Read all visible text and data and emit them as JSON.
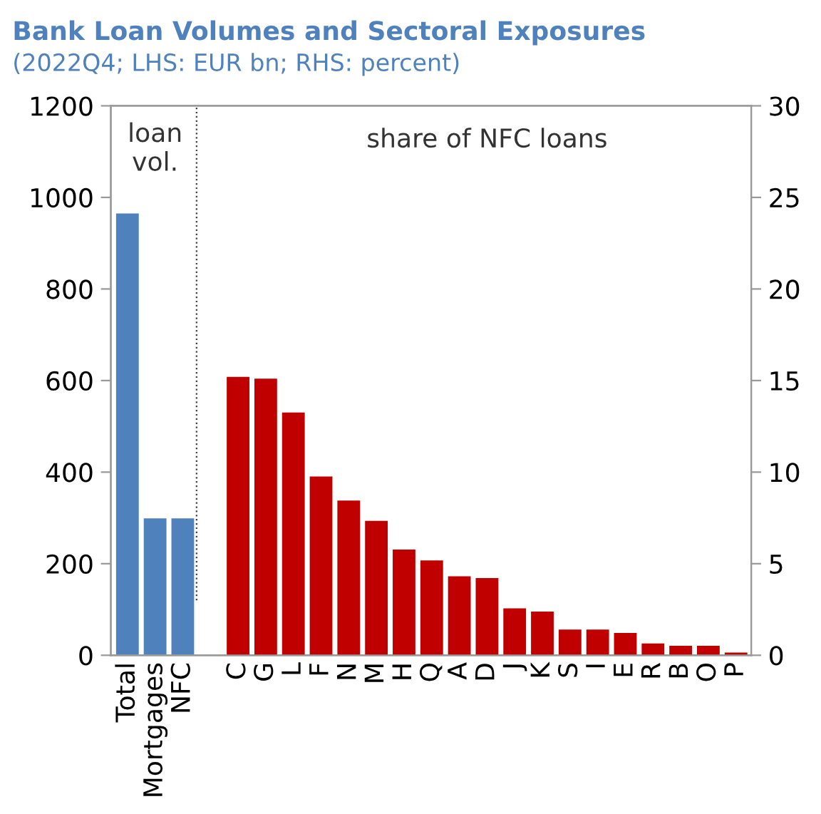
{
  "chart_data": {
    "type": "bar",
    "title": "Bank Loan Volumes and Sectoral Exposures",
    "subtitle": "(2022Q4; LHS: EUR bn; RHS: percent)",
    "categories": [
      "Total",
      "Mortgages",
      "NFC",
      null,
      "C",
      "G",
      "L",
      "F",
      "N",
      "M",
      "H",
      "Q",
      "A",
      "D",
      "J",
      "K",
      "S",
      "I",
      "E",
      "R",
      "B",
      "O",
      "P"
    ],
    "series": [
      {
        "color": "#4f81bd",
        "values": [
          965,
          299,
          299,
          null,
          null,
          null,
          null,
          null,
          null,
          null,
          null,
          null,
          null,
          null,
          null,
          null,
          null,
          null,
          null,
          null,
          null,
          null,
          null
        ]
      },
      {
        "color": "#c00000",
        "axis": "y2",
        "values": [
          null,
          null,
          null,
          null,
          15.2,
          15.1,
          13.25,
          9.76,
          8.45,
          7.34,
          5.77,
          5.18,
          4.31,
          4.22,
          2.56,
          2.39,
          1.4,
          1.4,
          1.22,
          0.64,
          0.52,
          0.52,
          0.15
        ]
      }
    ],
    "ylim": [
      0,
      1200
    ],
    "yticks": [
      0,
      200,
      400,
      600,
      800,
      1000,
      1200
    ],
    "y2lim": [
      0,
      30
    ],
    "y2ticks": [
      0,
      5,
      10,
      15,
      20,
      25,
      30
    ],
    "annotations": [
      "loan\nvol.",
      "share of NFC loans"
    ],
    "grid": false,
    "legend": false
  }
}
